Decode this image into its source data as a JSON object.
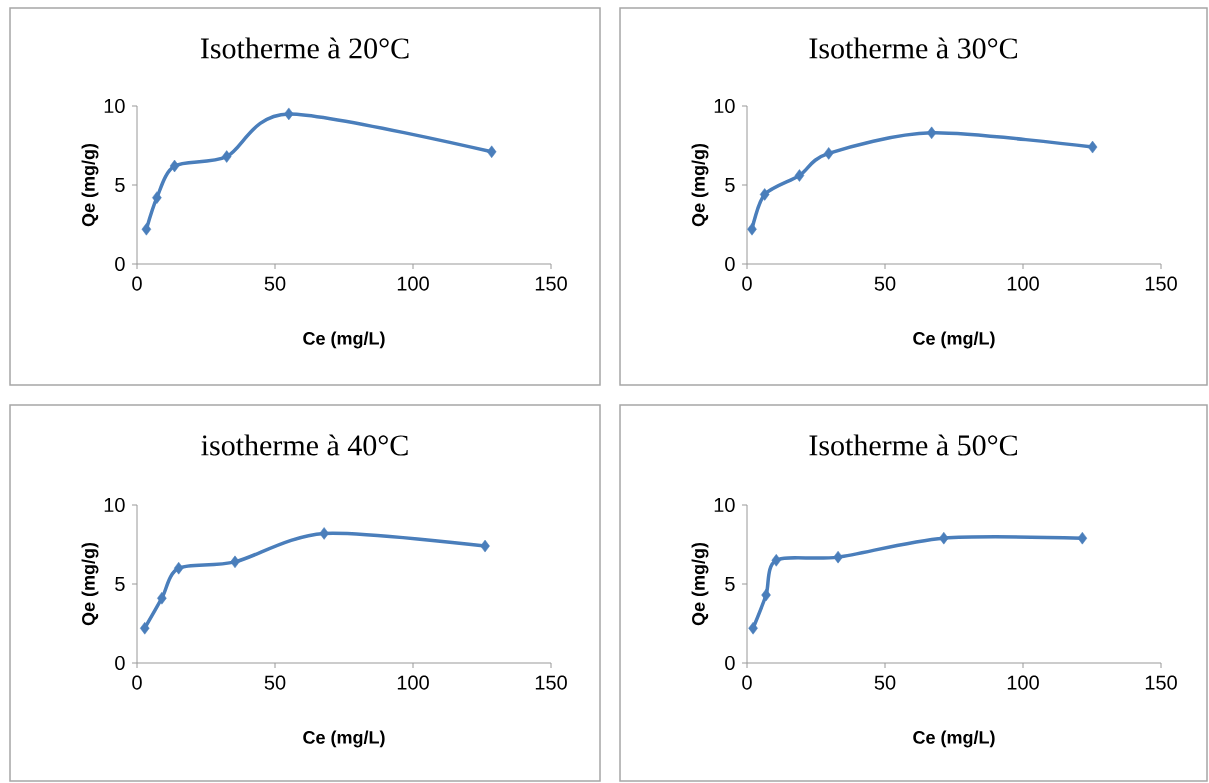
{
  "chart_data": [
    {
      "type": "line",
      "title": "Isotherme à 20°C",
      "xlabel": "Ce (mg/L)",
      "ylabel": "Qe (mg/g)",
      "x": [
        3.4,
        7.2,
        13.6,
        32.5,
        55,
        128.5
      ],
      "values": [
        2.2,
        4.2,
        6.2,
        6.8,
        9.5,
        7.1
      ],
      "color": "#4a7ebb",
      "marker": "diamond",
      "xlim": [
        0,
        150
      ],
      "ylim": [
        0,
        10
      ],
      "xticks": [
        0,
        50,
        100,
        150
      ],
      "yticks": [
        0,
        5,
        10
      ]
    },
    {
      "type": "line",
      "title": "Isotherme à 30°C",
      "xlabel": "Ce (mg/L)",
      "ylabel": "Qe (mg/g)",
      "x": [
        1.8,
        6.4,
        19,
        29.6,
        66.9,
        125.2
      ],
      "values": [
        2.2,
        4.4,
        5.6,
        7.0,
        8.3,
        7.4
      ],
      "color": "#4a7ebb",
      "marker": "diamond",
      "xlim": [
        0,
        150
      ],
      "ylim": [
        0,
        10
      ],
      "xticks": [
        0,
        50,
        100,
        150
      ],
      "yticks": [
        0,
        5,
        10
      ]
    },
    {
      "type": "line",
      "title": "isotherme à 40°C",
      "xlabel": "Ce (mg/L)",
      "ylabel": "Qe (mg/g)",
      "x": [
        2.8,
        9.0,
        15.1,
        35.5,
        67.8,
        126.1
      ],
      "values": [
        2.2,
        4.1,
        6.0,
        6.4,
        8.2,
        7.4
      ],
      "color": "#4a7ebb",
      "marker": "diamond",
      "xlim": [
        0,
        150
      ],
      "ylim": [
        0,
        10
      ],
      "xticks": [
        0,
        50,
        100,
        150
      ],
      "yticks": [
        0,
        5,
        10
      ]
    },
    {
      "type": "line",
      "title": "Isotherme à 50°C",
      "xlabel": "Ce (mg/L)",
      "ylabel": "Qe (mg/g)",
      "x": [
        2.2,
        6.9,
        10.6,
        33,
        71.3,
        121.5
      ],
      "values": [
        2.2,
        4.3,
        6.5,
        6.7,
        7.9,
        7.9
      ],
      "color": "#4a7ebb",
      "marker": "diamond",
      "xlim": [
        0,
        150
      ],
      "ylim": [
        0,
        10
      ],
      "xticks": [
        0,
        50,
        100,
        150
      ],
      "yticks": [
        0,
        5,
        10
      ]
    }
  ]
}
